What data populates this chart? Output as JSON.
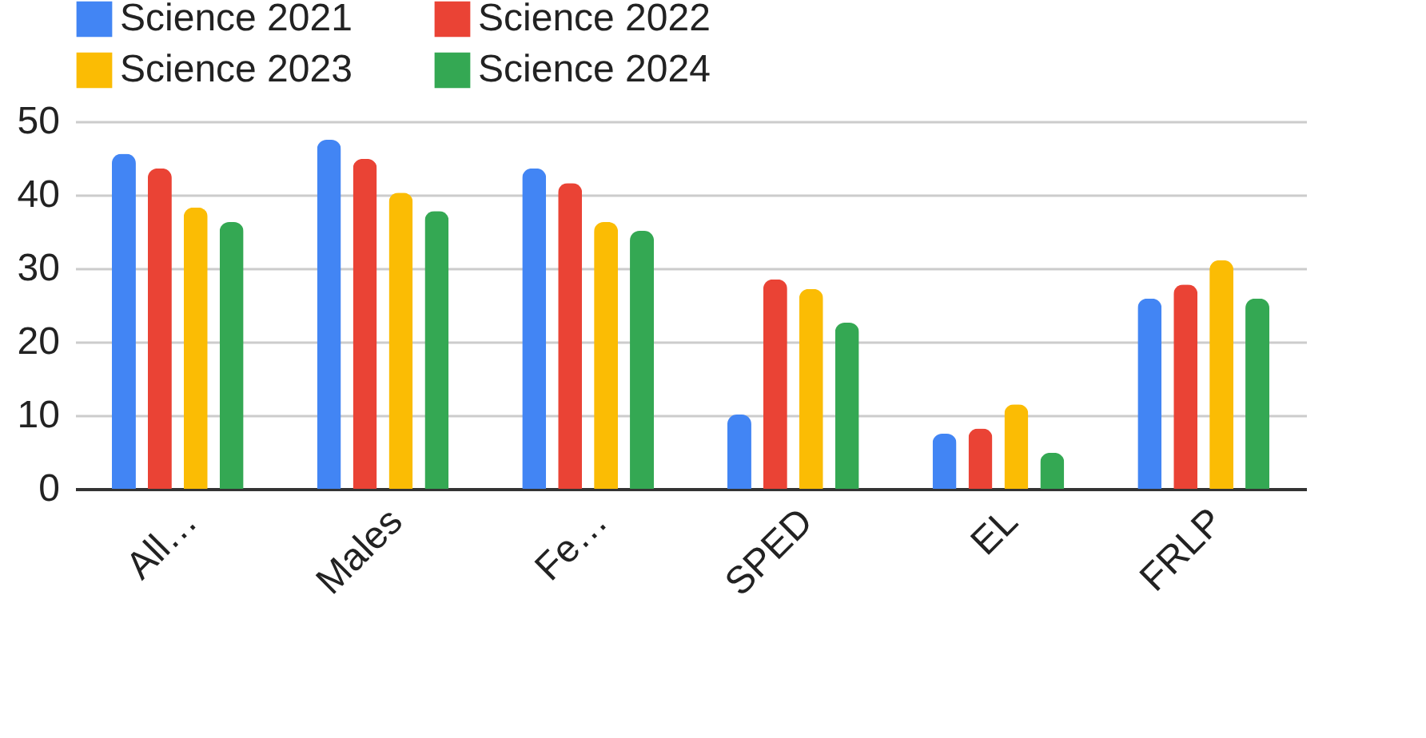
{
  "chart_data": {
    "type": "bar",
    "categories": [
      "All…",
      "Males",
      "Fe…",
      "SPED",
      "EL",
      "FRLP"
    ],
    "series": [
      {
        "name": "Science 2021",
        "color": "#4285f4",
        "values": [
          45.6,
          47.5,
          43.6,
          10.1,
          7.5,
          25.9
        ]
      },
      {
        "name": "Science 2022",
        "color": "#ea4335",
        "values": [
          43.6,
          44.9,
          41.6,
          28.5,
          8.2,
          27.8
        ]
      },
      {
        "name": "Science 2023",
        "color": "#fbbc04",
        "values": [
          38.3,
          40.3,
          36.3,
          27.2,
          11.5,
          31.1
        ]
      },
      {
        "name": "Science 2024",
        "color": "#34a853",
        "values": [
          36.3,
          37.8,
          35.1,
          22.6,
          4.9,
          25.9
        ]
      }
    ],
    "ylim": [
      0,
      50
    ],
    "yticks": [
      0,
      10,
      20,
      30,
      40,
      50
    ],
    "grid": "y",
    "legend": "top"
  }
}
